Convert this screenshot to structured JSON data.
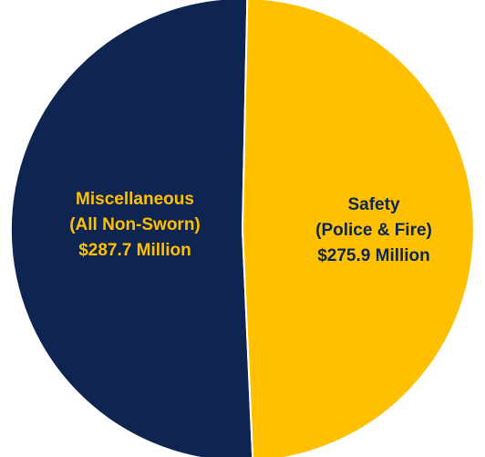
{
  "chart_data": {
    "type": "pie",
    "slices": [
      {
        "label_lines": [
          "Miscellaneous",
          "(All Non-Sworn)",
          "$287.7 Million"
        ],
        "value": 287.7,
        "color": "#0d2550",
        "text_color": "#ffc000"
      },
      {
        "label_lines": [
          "Safety",
          "(Police & Fire)",
          "$275.9 Million"
        ],
        "value": 275.9,
        "color": "#ffc000",
        "text_color": "#0d2550"
      }
    ],
    "title": "",
    "legend": "none"
  }
}
